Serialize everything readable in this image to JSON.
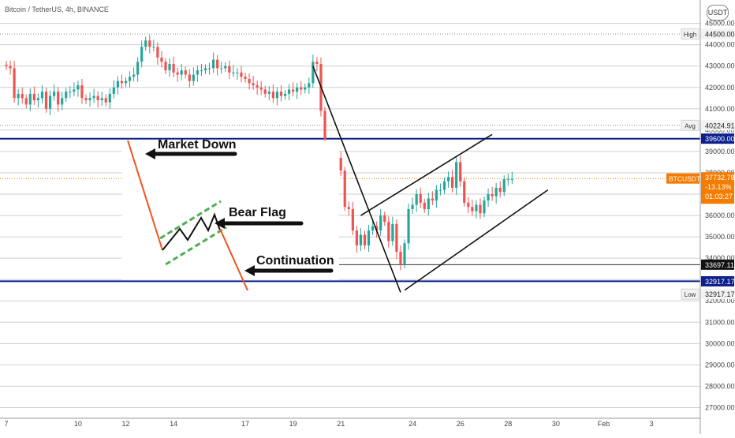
{
  "header": {
    "symbol_text": "Bitcoin / TetherUS, 4h, BINANCE",
    "currency_button": "USDT"
  },
  "chart_data": {
    "type": "candlestick",
    "title": "Bitcoin / TetherUS, 4h, BINANCE",
    "ylim": [
      26500,
      45800
    ],
    "y_ticks": [
      27000,
      28000,
      29000,
      30000,
      31000,
      32000,
      33000,
      34000,
      35000,
      36000,
      37000,
      38000,
      39000,
      40000,
      41000,
      42000,
      43000,
      44000,
      45000
    ],
    "x_ticks": [
      {
        "label": "7",
        "t": 0
      },
      {
        "label": "10",
        "t": 18
      },
      {
        "label": "12",
        "t": 30
      },
      {
        "label": "14",
        "t": 42
      },
      {
        "label": "17",
        "t": 60
      },
      {
        "label": "19",
        "t": 72
      },
      {
        "label": "21",
        "t": 84
      },
      {
        "label": "24",
        "t": 102
      },
      {
        "label": "26",
        "t": 114
      },
      {
        "label": "28",
        "t": 126
      },
      {
        "label": "30",
        "t": 138
      },
      {
        "label": "Feb",
        "t": 150
      },
      {
        "label": "3",
        "t": 162
      }
    ],
    "levels": [
      {
        "name": "High",
        "value": 44500.0,
        "label": "44500.00",
        "style": "dotted"
      },
      {
        "name": "Avg",
        "value": 40224.91,
        "label": "40224.91",
        "style": "dotted"
      },
      {
        "name": "resistance",
        "value": 39600.0,
        "label": "39600.00",
        "style": "solid"
      },
      {
        "name": "support-2",
        "value": 33697.11,
        "label": "33697.11",
        "style": "solid"
      },
      {
        "name": "support",
        "value": 32917.17,
        "label": "32917.17",
        "style": "solid"
      },
      {
        "name": "Low",
        "value": 32917.17,
        "label": "32917.17",
        "style": "plain"
      }
    ],
    "current": {
      "symbol": "BTCUSDT",
      "price": "37732.78",
      "change": "-13.13%",
      "countdown": "01:03:27",
      "value": 37732.78
    },
    "close_path": [
      [
        0,
        43000
      ],
      [
        1,
        42900
      ],
      [
        2,
        41500
      ],
      [
        3,
        41700
      ],
      [
        4,
        41500
      ],
      [
        5,
        41200
      ],
      [
        6,
        41700
      ],
      [
        7,
        41400
      ],
      [
        8,
        41500
      ],
      [
        9,
        41800
      ],
      [
        10,
        41000
      ],
      [
        11,
        41600
      ],
      [
        12,
        41800
      ],
      [
        13,
        41200
      ],
      [
        14,
        41500
      ],
      [
        15,
        41800
      ],
      [
        16,
        41800
      ],
      [
        17,
        41900
      ],
      [
        18,
        42100
      ],
      [
        19,
        41500
      ],
      [
        20,
        41400
      ],
      [
        21,
        41500
      ],
      [
        22,
        41600
      ],
      [
        23,
        41400
      ],
      [
        24,
        41500
      ],
      [
        25,
        41300
      ],
      [
        26,
        41700
      ],
      [
        27,
        42000
      ],
      [
        28,
        42300
      ],
      [
        29,
        42200
      ],
      [
        30,
        42300
      ],
      [
        31,
        42500
      ],
      [
        32,
        42600
      ],
      [
        33,
        43200
      ],
      [
        34,
        43900
      ],
      [
        35,
        44200
      ],
      [
        36,
        43900
      ],
      [
        37,
        43900
      ],
      [
        38,
        43400
      ],
      [
        39,
        43200
      ],
      [
        40,
        42800
      ],
      [
        41,
        43100
      ],
      [
        42,
        42700
      ],
      [
        43,
        42600
      ],
      [
        44,
        42800
      ],
      [
        45,
        42600
      ],
      [
        46,
        42300
      ],
      [
        47,
        42600
      ],
      [
        48,
        42800
      ],
      [
        49,
        42800
      ],
      [
        50,
        42900
      ],
      [
        51,
        42900
      ],
      [
        52,
        43300
      ],
      [
        53,
        42900
      ],
      [
        54,
        42900
      ],
      [
        55,
        43000
      ],
      [
        56,
        42700
      ],
      [
        57,
        42700
      ],
      [
        58,
        42700
      ],
      [
        59,
        42500
      ],
      [
        60,
        42400
      ],
      [
        61,
        42200
      ],
      [
        62,
        42100
      ],
      [
        63,
        42000
      ],
      [
        64,
        41900
      ],
      [
        65,
        41700
      ],
      [
        66,
        41800
      ],
      [
        67,
        41500
      ],
      [
        68,
        41800
      ],
      [
        69,
        41600
      ],
      [
        70,
        41700
      ],
      [
        71,
        41900
      ],
      [
        72,
        41800
      ],
      [
        73,
        42000
      ],
      [
        74,
        41900
      ],
      [
        75,
        42000
      ],
      [
        76,
        42200
      ],
      [
        77,
        43200
      ],
      [
        78,
        43100
      ],
      [
        79,
        40900
      ],
      [
        80,
        38600
      ],
      [
        81,
        39100
      ],
      [
        82,
        38900
      ],
      [
        83,
        38700
      ],
      [
        84,
        38100
      ],
      [
        85,
        36400
      ],
      [
        86,
        36300
      ],
      [
        87,
        35300
      ],
      [
        88,
        34600
      ],
      [
        89,
        35100
      ],
      [
        90,
        34600
      ],
      [
        91,
        35300
      ],
      [
        92,
        35500
      ],
      [
        93,
        35300
      ],
      [
        94,
        36000
      ],
      [
        95,
        35700
      ],
      [
        96,
        34800
      ],
      [
        97,
        35600
      ],
      [
        98,
        34300
      ],
      [
        99,
        33700
      ],
      [
        100,
        34700
      ],
      [
        101,
        36300
      ],
      [
        102,
        36500
      ],
      [
        103,
        37000
      ],
      [
        104,
        36600
      ],
      [
        105,
        36300
      ],
      [
        106,
        36800
      ],
      [
        107,
        36700
      ],
      [
        108,
        37200
      ],
      [
        109,
        37200
      ],
      [
        110,
        37600
      ],
      [
        111,
        37800
      ],
      [
        112,
        37300
      ],
      [
        113,
        38500
      ],
      [
        114,
        37600
      ],
      [
        115,
        36600
      ],
      [
        116,
        36400
      ],
      [
        117,
        36200
      ],
      [
        118,
        36500
      ],
      [
        119,
        36100
      ],
      [
        120,
        36700
      ],
      [
        121,
        37000
      ],
      [
        122,
        36900
      ],
      [
        123,
        37300
      ],
      [
        124,
        37100
      ],
      [
        125,
        37700
      ],
      [
        126,
        37700
      ],
      [
        127,
        37700
      ]
    ],
    "pattern_lines": [
      {
        "name": "drop-line",
        "from": [
          77,
          43000
        ],
        "to": [
          99,
          32400
        ]
      },
      {
        "name": "channel-upper",
        "from": [
          89,
          36000
        ],
        "to": [
          122,
          39800
        ]
      },
      {
        "name": "channel-lower",
        "from": [
          100,
          32500
        ],
        "to": [
          136,
          37200
        ]
      }
    ],
    "annotations": [
      {
        "name": "market-down",
        "text": "Market Down"
      },
      {
        "name": "bear-flag",
        "text": "Bear Flag"
      },
      {
        "name": "continuation",
        "text": "Continuation"
      }
    ],
    "colors": {
      "up": "#26a69a",
      "down": "#ef5350",
      "level": "#0d1f8c",
      "current": "#f57c00",
      "grid": "#d8d8d8",
      "flag": "#4caf50"
    }
  }
}
